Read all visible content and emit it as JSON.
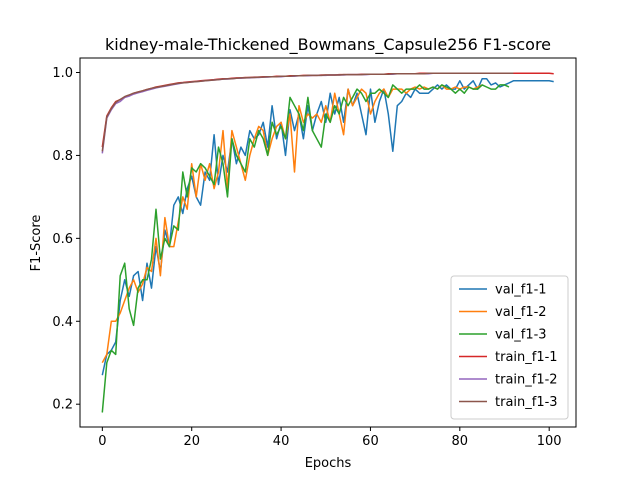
{
  "chart_data": {
    "type": "line",
    "title": "kidney-male-Thickened_Bowmans_Capsule256 F1-score",
    "xlabel": "Epochs",
    "ylabel": "F1-Score",
    "xlim": [
      -5,
      106
    ],
    "ylim": [
      0.145,
      1.035
    ],
    "x_ticks": [
      0,
      20,
      40,
      60,
      80,
      100
    ],
    "y_ticks": [
      0.2,
      0.4,
      0.6,
      0.8,
      1.0
    ],
    "grid": false,
    "legend_position": "lower-right",
    "colors": {
      "val_f1-1": "#1f77b4",
      "val_f1-2": "#ff7f0e",
      "val_f1-3": "#2ca02c",
      "train_f1-1": "#d62728",
      "train_f1-2": "#9467bd",
      "train_f1-3": "#8c564b"
    },
    "series": [
      {
        "name": "val_f1-1",
        "values": [
          0.27,
          0.32,
          0.33,
          0.35,
          0.45,
          0.5,
          0.46,
          0.51,
          0.52,
          0.45,
          0.54,
          0.48,
          0.58,
          0.52,
          0.62,
          0.58,
          0.68,
          0.7,
          0.66,
          0.72,
          0.75,
          0.7,
          0.68,
          0.76,
          0.74,
          0.85,
          0.73,
          0.8,
          0.76,
          0.84,
          0.78,
          0.82,
          0.8,
          0.86,
          0.84,
          0.85,
          0.88,
          0.82,
          0.92,
          0.84,
          0.88,
          0.8,
          0.91,
          0.86,
          0.9,
          0.84,
          0.92,
          0.86,
          0.9,
          0.93,
          0.88,
          0.95,
          0.9,
          0.94,
          0.88,
          0.96,
          0.92,
          0.95,
          0.9,
          0.85,
          0.96,
          0.88,
          0.93,
          0.96,
          0.9,
          0.81,
          0.92,
          0.93,
          0.95,
          0.94,
          0.96,
          0.95,
          0.95,
          0.95,
          0.96,
          0.97,
          0.96,
          0.97,
          0.96,
          0.96,
          0.98,
          0.96,
          0.97,
          0.98,
          0.96,
          0.985,
          0.985,
          0.97,
          0.975,
          0.965,
          0.97,
          0.975,
          0.98,
          0.98,
          0.98,
          0.98,
          0.98,
          0.98,
          0.98,
          0.98,
          0.98,
          0.978
        ]
      },
      {
        "name": "val_f1-2",
        "values": [
          0.3,
          0.32,
          0.4,
          0.4,
          0.42,
          0.45,
          0.48,
          0.5,
          0.47,
          0.49,
          0.53,
          0.52,
          0.6,
          0.51,
          0.65,
          0.58,
          0.58,
          0.64,
          0.7,
          0.67,
          0.78,
          0.7,
          0.78,
          0.74,
          0.78,
          0.72,
          0.76,
          0.86,
          0.72,
          0.86,
          0.82,
          0.78,
          0.74,
          0.8,
          0.84,
          0.87,
          0.86,
          0.8,
          0.84,
          0.87,
          0.88,
          0.84,
          0.9,
          0.76,
          0.92,
          0.88,
          0.9,
          0.89,
          0.9,
          0.88,
          0.92,
          0.88,
          0.95,
          0.9,
          0.85,
          0.96,
          0.92,
          0.94,
          0.96,
          0.95,
          0.9,
          0.93,
          0.95,
          0.96,
          0.94,
          0.96,
          0.96,
          0.96,
          0.95,
          0.96,
          0.965,
          0.96,
          0.965,
          0.96,
          0.965,
          0.96,
          0.97,
          0.96,
          0.96,
          0.965,
          0.96,
          0.965,
          0.965,
          0.96,
          0.965,
          0.97
        ]
      },
      {
        "name": "val_f1-3",
        "values": [
          0.18,
          0.3,
          0.33,
          0.32,
          0.51,
          0.54,
          0.43,
          0.39,
          0.48,
          0.5,
          0.5,
          0.55,
          0.67,
          0.55,
          0.6,
          0.58,
          0.63,
          0.62,
          0.76,
          0.7,
          0.77,
          0.76,
          0.78,
          0.77,
          0.75,
          0.73,
          0.82,
          0.78,
          0.7,
          0.84,
          0.8,
          0.78,
          0.76,
          0.84,
          0.82,
          0.86,
          0.84,
          0.8,
          0.88,
          0.85,
          0.87,
          0.84,
          0.94,
          0.92,
          0.9,
          0.86,
          0.94,
          0.86,
          0.84,
          0.82,
          0.9,
          0.88,
          0.92,
          0.9,
          0.94,
          0.92,
          0.94,
          0.96,
          0.95,
          0.93,
          0.95,
          0.95,
          0.96,
          0.95,
          0.94,
          0.97,
          0.96,
          0.95,
          0.96,
          0.96,
          0.96,
          0.97,
          0.96,
          0.96,
          0.965,
          0.96,
          0.97,
          0.965,
          0.96,
          0.95,
          0.96,
          0.95,
          0.965,
          0.96,
          0.96,
          0.97,
          0.965,
          0.96,
          0.96,
          0.97,
          0.97,
          0.965
        ]
      },
      {
        "name": "train_f1-1",
        "values": [
          0.82,
          0.895,
          0.915,
          0.93,
          0.935,
          0.94,
          0.945,
          0.95,
          0.953,
          0.956,
          0.959,
          0.962,
          0.965,
          0.967,
          0.969,
          0.971,
          0.973,
          0.975,
          0.976,
          0.977,
          0.978,
          0.979,
          0.98,
          0.981,
          0.982,
          0.983,
          0.984,
          0.985,
          0.985,
          0.986,
          0.987,
          0.987,
          0.988,
          0.988,
          0.989,
          0.989,
          0.99,
          0.99,
          0.99,
          0.991,
          0.991,
          0.991,
          0.992,
          0.992,
          0.992,
          0.993,
          0.993,
          0.993,
          0.993,
          0.994,
          0.994,
          0.994,
          0.994,
          0.995,
          0.995,
          0.995,
          0.995,
          0.995,
          0.996,
          0.996,
          0.996,
          0.996,
          0.996,
          0.996,
          0.997,
          0.997,
          0.997,
          0.997,
          0.997,
          0.997,
          0.997,
          0.998,
          0.998,
          0.998,
          0.998,
          0.998,
          0.998,
          0.998,
          0.998,
          0.998,
          0.998,
          0.998,
          0.998,
          0.998,
          0.998,
          0.998,
          0.998,
          0.998,
          0.998,
          0.998,
          0.998,
          0.998,
          0.998,
          0.998,
          0.998,
          0.998,
          0.998,
          0.998,
          0.998,
          0.998,
          0.998,
          0.997
        ]
      },
      {
        "name": "train_f1-2",
        "values": [
          0.805,
          0.89,
          0.91,
          0.925,
          0.93,
          0.94,
          0.943,
          0.948,
          0.951,
          0.954,
          0.957,
          0.96,
          0.963,
          0.965,
          0.967,
          0.969,
          0.971,
          0.973,
          0.975,
          0.976,
          0.977,
          0.978,
          0.979,
          0.98,
          0.981,
          0.982,
          0.983,
          0.984,
          0.984,
          0.985,
          0.986,
          0.986,
          0.987,
          0.987,
          0.988,
          0.988,
          0.989,
          0.989,
          0.99,
          0.99,
          0.99,
          0.991,
          0.991,
          0.991,
          0.992,
          0.992,
          0.992,
          0.993,
          0.993,
          0.993,
          0.993,
          0.994,
          0.994,
          0.994,
          0.994,
          0.995,
          0.995,
          0.995,
          0.995,
          0.995,
          0.996,
          0.996,
          0.996,
          0.996,
          0.996,
          0.996,
          0.997,
          0.997,
          0.997,
          0.997,
          0.997,
          0.997,
          0.997,
          0.997,
          0.998,
          0.998,
          0.998,
          0.998,
          0.998,
          0.998,
          0.998,
          0.998,
          0.998,
          0.998,
          0.998,
          0.998
        ]
      },
      {
        "name": "train_f1-3",
        "values": [
          0.81,
          0.893,
          0.913,
          0.928,
          0.935,
          0.942,
          0.946,
          0.95,
          0.953,
          0.956,
          0.959,
          0.962,
          0.964,
          0.966,
          0.968,
          0.97,
          0.972,
          0.974,
          0.975,
          0.976,
          0.977,
          0.978,
          0.979,
          0.98,
          0.981,
          0.982,
          0.983,
          0.984,
          0.985,
          0.985,
          0.986,
          0.987,
          0.987,
          0.988,
          0.988,
          0.989,
          0.989,
          0.99,
          0.99,
          0.99,
          0.991,
          0.991,
          0.991,
          0.992,
          0.992,
          0.992,
          0.993,
          0.993,
          0.993,
          0.993,
          0.994,
          0.994,
          0.994,
          0.994,
          0.995,
          0.995,
          0.995,
          0.995,
          0.995,
          0.996,
          0.996,
          0.996,
          0.996,
          0.996,
          0.996,
          0.997,
          0.997,
          0.997,
          0.997,
          0.997,
          0.997,
          0.997,
          0.997,
          0.998,
          0.998,
          0.998,
          0.998,
          0.998,
          0.998,
          0.998,
          0.998,
          0.998,
          0.998,
          0.998,
          0.998,
          0.998,
          0.998,
          0.998,
          0.998,
          0.998,
          0.998,
          0.998,
          0.998
        ]
      }
    ]
  }
}
